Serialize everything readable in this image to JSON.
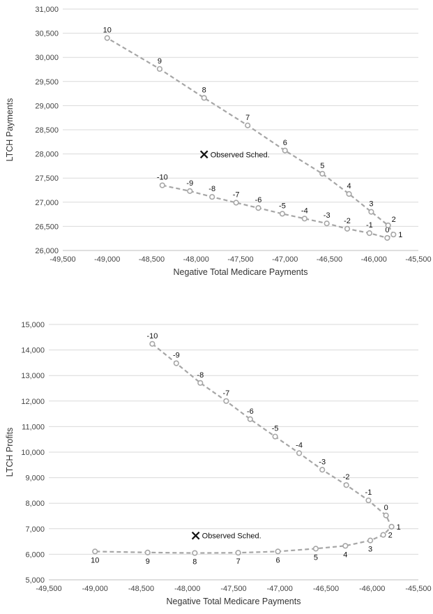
{
  "chart_data": [
    {
      "type": "scatter",
      "xlabel": "Negative Total Medicare Payments",
      "ylabel": "LTCH Payments",
      "xlim": [
        -49500,
        -45500
      ],
      "ylim": [
        26000,
        31000
      ],
      "xticks": [
        -49500,
        -49000,
        -48500,
        -48000,
        -47500,
        -47000,
        -46500,
        -46000,
        -45500
      ],
      "xtick_labels": [
        "-49,500",
        "-49,000",
        "-48,500",
        "-48,000",
        "-47,500",
        "-47,000",
        "-46,500",
        "-46,000",
        "-45,500"
      ],
      "yticks": [
        26000,
        26500,
        27000,
        27500,
        28000,
        28500,
        29000,
        29500,
        30000,
        30500,
        31000
      ],
      "ytick_labels": [
        "26,000",
        "26,500",
        "27,000",
        "27,500",
        "28,000",
        "28,500",
        "29,000",
        "29,500",
        "30,000",
        "30,500",
        "31,000"
      ],
      "grid": true,
      "series": [
        {
          "color": "#a6a6a6",
          "line": "dashed",
          "points": [
            {
              "label": "-10",
              "x": -48380,
              "y": 27350,
              "label_pos": "above"
            },
            {
              "label": "-9",
              "x": -48070,
              "y": 27230,
              "label_pos": "above"
            },
            {
              "label": "-8",
              "x": -47820,
              "y": 27110,
              "label_pos": "above"
            },
            {
              "label": "-7",
              "x": -47550,
              "y": 26990,
              "label_pos": "above"
            },
            {
              "label": "-6",
              "x": -47300,
              "y": 26880,
              "label_pos": "above"
            },
            {
              "label": "-5",
              "x": -47030,
              "y": 26760,
              "label_pos": "above"
            },
            {
              "label": "-4",
              "x": -46780,
              "y": 26660,
              "label_pos": "above"
            },
            {
              "label": "-3",
              "x": -46530,
              "y": 26560,
              "label_pos": "above"
            },
            {
              "label": "-2",
              "x": -46300,
              "y": 26450,
              "label_pos": "above"
            },
            {
              "label": "-1",
              "x": -46050,
              "y": 26360,
              "label_pos": "above"
            },
            {
              "label": "0",
              "x": -45850,
              "y": 26260,
              "label_pos": "above"
            },
            {
              "label": "1",
              "x": -45780,
              "y": 26330,
              "label_pos": "right"
            },
            {
              "label": "2",
              "x": -45840,
              "y": 26520,
              "label_pos": "aboveright"
            },
            {
              "label": "3",
              "x": -46030,
              "y": 26800,
              "label_pos": "above"
            },
            {
              "label": "4",
              "x": -46280,
              "y": 27170,
              "label_pos": "above"
            },
            {
              "label": "5",
              "x": -46580,
              "y": 27590,
              "label_pos": "above"
            },
            {
              "label": "6",
              "x": -47000,
              "y": 28070,
              "label_pos": "above"
            },
            {
              "label": "7",
              "x": -47420,
              "y": 28590,
              "label_pos": "above"
            },
            {
              "label": "8",
              "x": -47910,
              "y": 29160,
              "label_pos": "above"
            },
            {
              "label": "9",
              "x": -48410,
              "y": 29760,
              "label_pos": "above"
            },
            {
              "label": "10",
              "x": -49000,
              "y": 30400,
              "label_pos": "above"
            }
          ]
        }
      ],
      "annotations": [
        {
          "marker": "x",
          "text": "Observed Sched.",
          "x": -47910,
          "y": 27990
        }
      ]
    },
    {
      "type": "scatter",
      "xlabel": "Negative Total Medicare Payments",
      "ylabel": "LTCH Profits",
      "xlim": [
        -49500,
        -45500
      ],
      "ylim": [
        5000,
        15000
      ],
      "xticks": [
        -49500,
        -49000,
        -48500,
        -48000,
        -47500,
        -47000,
        -46500,
        -46000,
        -45500
      ],
      "xtick_labels": [
        "-49,500",
        "-49,000",
        "-48,500",
        "-48,000",
        "-47,500",
        "-47,000",
        "-46,500",
        "-46,000",
        "-45,500"
      ],
      "yticks": [
        5000,
        6000,
        7000,
        8000,
        9000,
        10000,
        11000,
        12000,
        13000,
        14000,
        15000
      ],
      "ytick_labels": [
        "5,000",
        "6,000",
        "7,000",
        "8,000",
        "9,000",
        "10,000",
        "11,000",
        "12,000",
        "13,000",
        "14,000",
        "15,000"
      ],
      "grid": true,
      "series": [
        {
          "color": "#a6a6a6",
          "line": "dashed",
          "points": [
            {
              "label": "-10",
              "x": -48380,
              "y": 14240,
              "label_pos": "above"
            },
            {
              "label": "-9",
              "x": -48120,
              "y": 13480,
              "label_pos": "above"
            },
            {
              "label": "-8",
              "x": -47860,
              "y": 12710,
              "label_pos": "above"
            },
            {
              "label": "-7",
              "x": -47580,
              "y": 12000,
              "label_pos": "above"
            },
            {
              "label": "-6",
              "x": -47320,
              "y": 11290,
              "label_pos": "above"
            },
            {
              "label": "-5",
              "x": -47050,
              "y": 10610,
              "label_pos": "above"
            },
            {
              "label": "-4",
              "x": -46790,
              "y": 9960,
              "label_pos": "above"
            },
            {
              "label": "-3",
              "x": -46540,
              "y": 9310,
              "label_pos": "above"
            },
            {
              "label": "-2",
              "x": -46280,
              "y": 8710,
              "label_pos": "above"
            },
            {
              "label": "-1",
              "x": -46040,
              "y": 8110,
              "label_pos": "above"
            },
            {
              "label": "0",
              "x": -45850,
              "y": 7520,
              "label_pos": "above"
            },
            {
              "label": "1",
              "x": -45790,
              "y": 7080,
              "label_pos": "right"
            },
            {
              "label": "2",
              "x": -45880,
              "y": 6760,
              "label_pos": "right"
            },
            {
              "label": "3",
              "x": -46020,
              "y": 6540,
              "label_pos": "below"
            },
            {
              "label": "4",
              "x": -46290,
              "y": 6330,
              "label_pos": "below"
            },
            {
              "label": "5",
              "x": -46610,
              "y": 6220,
              "label_pos": "below"
            },
            {
              "label": "6",
              "x": -47020,
              "y": 6110,
              "label_pos": "below"
            },
            {
              "label": "7",
              "x": -47450,
              "y": 6060,
              "label_pos": "below"
            },
            {
              "label": "8",
              "x": -47920,
              "y": 6050,
              "label_pos": "below"
            },
            {
              "label": "9",
              "x": -48430,
              "y": 6070,
              "label_pos": "below"
            },
            {
              "label": "10",
              "x": -49000,
              "y": 6110,
              "label_pos": "below"
            }
          ]
        }
      ],
      "annotations": [
        {
          "marker": "x",
          "text": "Observed Sched.",
          "x": -47910,
          "y": 6730
        }
      ]
    }
  ]
}
